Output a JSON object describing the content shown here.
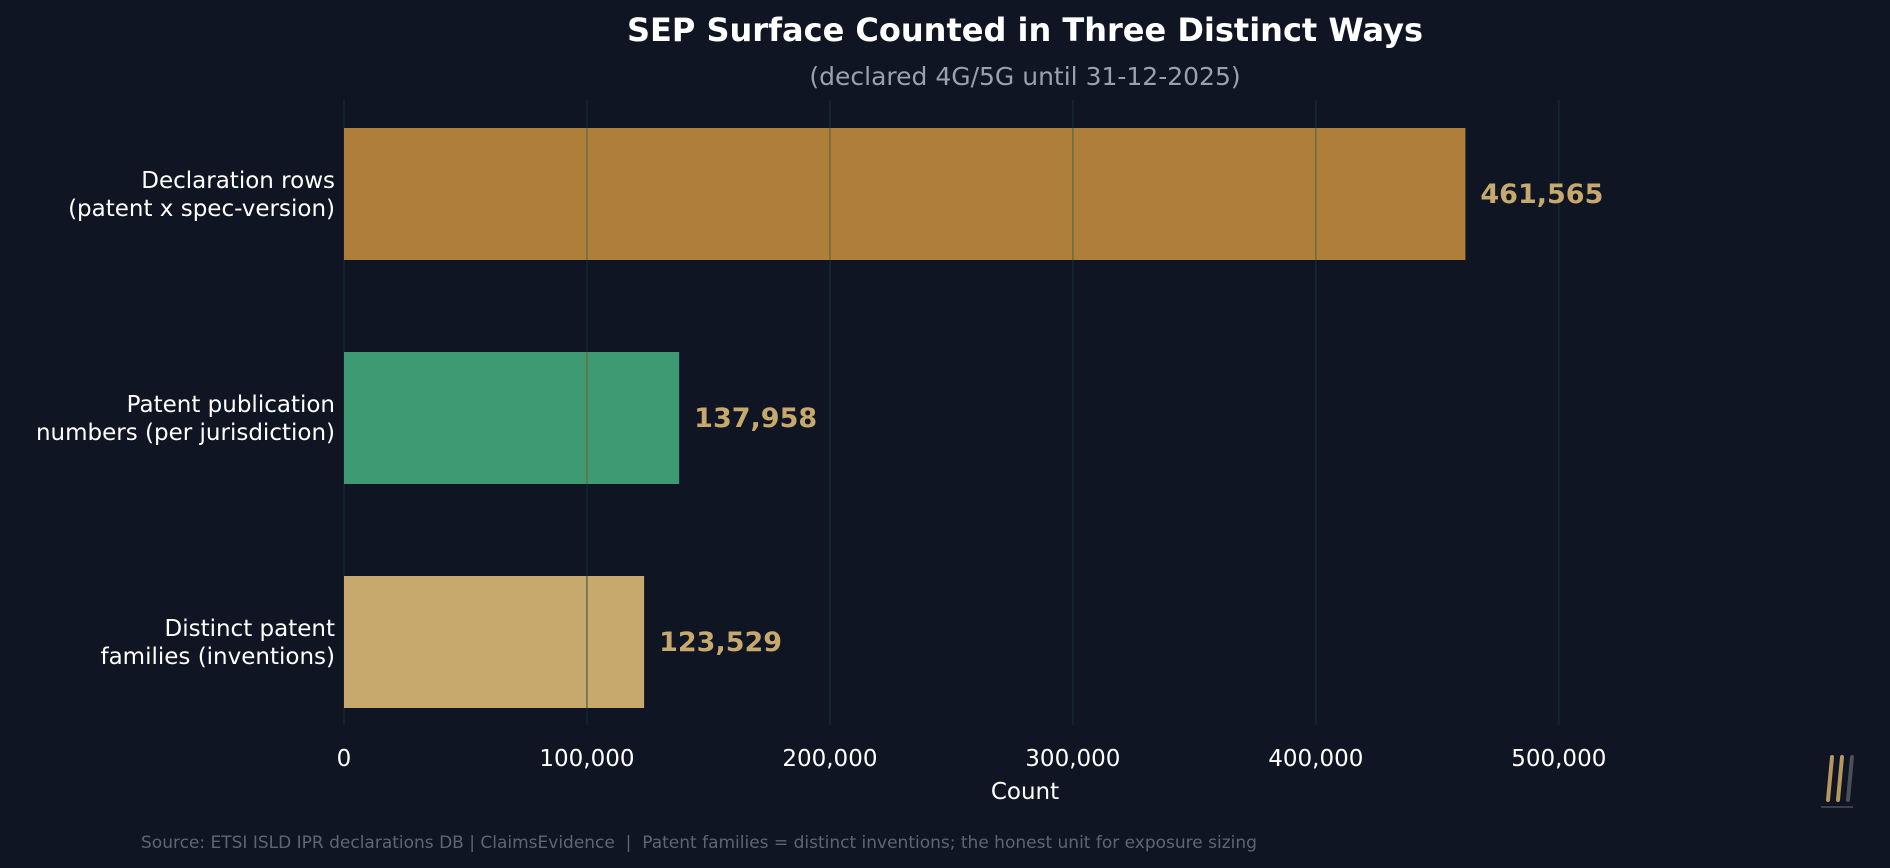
{
  "chart_data": {
    "type": "bar",
    "orientation": "horizontal",
    "title": "SEP Surface Counted in Three Distinct Ways",
    "subtitle": "(declared 4G/5G until 31-12-2025)",
    "categories": [
      [
        "Declaration rows",
        "(patent x spec-version)"
      ],
      [
        "Patent publication",
        "numbers (per jurisdiction)"
      ],
      [
        "Distinct patent",
        "families (inventions)"
      ]
    ],
    "values": [
      461565,
      137958,
      123529
    ],
    "value_labels": [
      "461,565",
      "137,958",
      "123,529"
    ],
    "bar_colors": [
      "#b07e3b",
      "#3e9a73",
      "#c8a96d"
    ],
    "value_label_color": "#c8a96d",
    "xlabel": "Count",
    "ylabel": "",
    "xlim": [
      0,
      575000
    ],
    "xticks": [
      0,
      100000,
      200000,
      300000,
      400000,
      500000
    ],
    "xtick_labels": [
      "0",
      "100,000",
      "200,000",
      "300,000",
      "400,000",
      "500,000"
    ],
    "grid": true,
    "grid_color": "#14292d",
    "source": "Source: ETSI ISLD IPR declarations DB | ClaimsEvidence  |  Patent families = distinct inventions; the honest unit for exposure sizing",
    "logo_icon": "stacked-slash-logo-icon"
  }
}
